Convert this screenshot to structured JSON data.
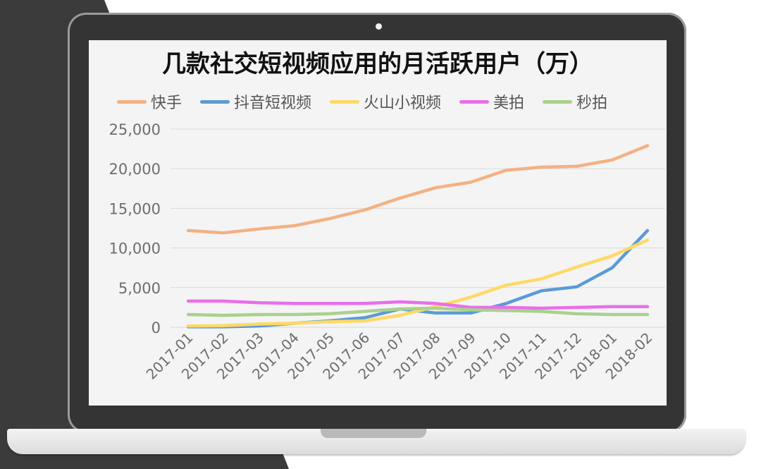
{
  "chart_data": {
    "type": "line",
    "title": "几款社交短视频应用的月活跃用户（万）",
    "categories": [
      "2017-01",
      "2017-02",
      "2017-03",
      "2017-04",
      "2017-05",
      "2017-06",
      "2017-07",
      "2017-08",
      "2017-09",
      "2017-10",
      "2017-11",
      "2017-12",
      "2018-01",
      "2018-02"
    ],
    "ylim": [
      0,
      25000
    ],
    "yticks": [
      "0",
      "5,000",
      "10,000",
      "15,000",
      "20,000",
      "25,000"
    ],
    "grid": true,
    "legend_position": "top",
    "series": [
      {
        "name": "快手",
        "color": "#f4b183",
        "values": [
          12200,
          11900,
          12400,
          12800,
          13700,
          14800,
          16300,
          17600,
          18300,
          19800,
          20200,
          20300,
          21100,
          22900
        ]
      },
      {
        "name": "抖音短视频",
        "color": "#5b9bd5",
        "values": [
          50,
          50,
          150,
          500,
          800,
          1200,
          2300,
          1800,
          1800,
          3000,
          4600,
          5100,
          7500,
          12200
        ]
      },
      {
        "name": "火山小视频",
        "color": "#ffd966",
        "values": [
          150,
          200,
          400,
          500,
          700,
          800,
          1500,
          2600,
          3800,
          5300,
          6100,
          7600,
          9000,
          11000
        ]
      },
      {
        "name": "美拍",
        "color": "#ea6eea",
        "values": [
          3300,
          3300,
          3100,
          3000,
          3000,
          3000,
          3200,
          3000,
          2500,
          2500,
          2400,
          2500,
          2600,
          2600
        ]
      },
      {
        "name": "秒拍",
        "color": "#a9d18e",
        "values": [
          1600,
          1500,
          1600,
          1600,
          1700,
          2000,
          2300,
          2400,
          2200,
          2100,
          2000,
          1700,
          1600,
          1600
        ]
      }
    ]
  }
}
